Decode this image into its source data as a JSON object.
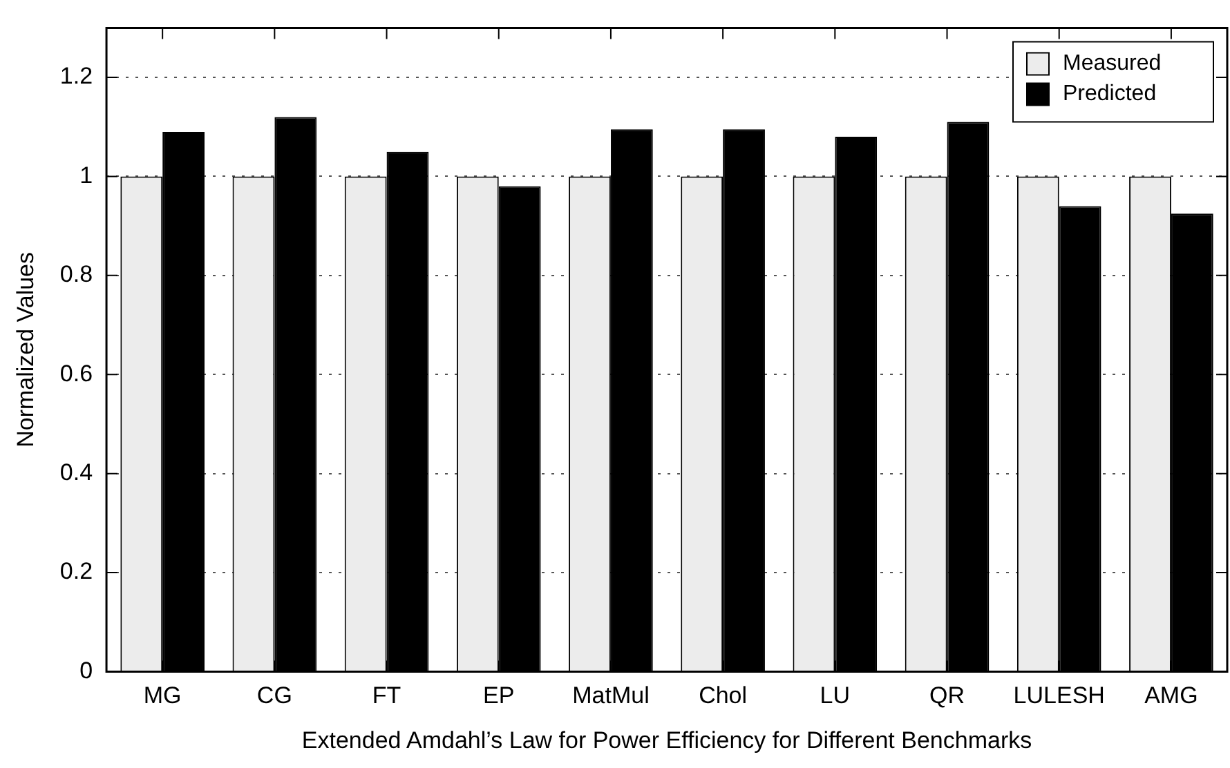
{
  "chart_data": {
    "type": "bar",
    "xlabel": "Extended Amdahl’s Law for Power Efficiency for Different Benchmarks",
    "ylabel": "Normalized Values",
    "categories": [
      "MG",
      "CG",
      "FT",
      "EP",
      "MatMul",
      "Chol",
      "LU",
      "QR",
      "LULESH",
      "AMG"
    ],
    "series": [
      {
        "name": "Measured",
        "color": "#ececec",
        "values": [
          1,
          1,
          1,
          1,
          1,
          1,
          1,
          1,
          1,
          1
        ]
      },
      {
        "name": "Predicted",
        "color": "#000000",
        "values": [
          1.09,
          1.12,
          1.05,
          0.98,
          1.095,
          1.095,
          1.08,
          1.11,
          0.94,
          0.925
        ]
      }
    ],
    "ylim": [
      0,
      1.3
    ],
    "yticks": [
      0,
      0.2,
      0.4,
      0.6,
      0.8,
      1,
      1.2
    ],
    "grid": "y",
    "legend": "top right"
  }
}
